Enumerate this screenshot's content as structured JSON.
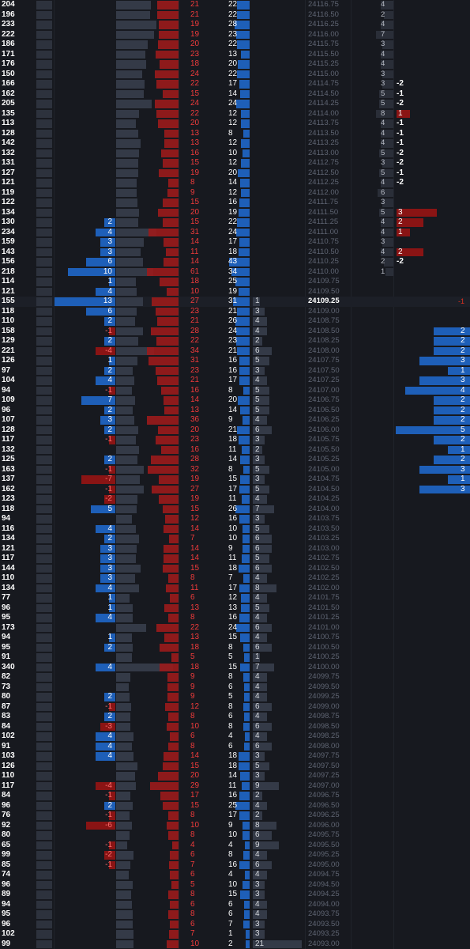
{
  "colors": {
    "background": "#17191f",
    "buy_bar": "#1e5fb8",
    "sell_bar": "#8a1414",
    "neutral_bar": "#343a47",
    "ask_text": "#ef3b3b",
    "price_text": "#5f6573",
    "current_price_text": "#ffffff"
  },
  "current_price": "24109.25",
  "current_marker": "-1",
  "rows": [
    {
      "v": "204",
      "d": null,
      "s": null,
      "r": "21",
      "b": "22",
      "t": null,
      "p": "24116.75",
      "f": "4",
      "n": null,
      "e": null
    },
    {
      "v": "196",
      "d": null,
      "s": null,
      "r": "21",
      "b": "22",
      "t": null,
      "p": "24116.50",
      "f": "2",
      "n": null,
      "e": null
    },
    {
      "v": "233",
      "d": null,
      "s": null,
      "r": "19",
      "b": "28",
      "t": null,
      "p": "24116.25",
      "f": "4",
      "n": null,
      "e": null
    },
    {
      "v": "222",
      "d": null,
      "s": null,
      "r": "19",
      "b": "23",
      "t": null,
      "p": "24116.00",
      "f": "7",
      "n": null,
      "e": null
    },
    {
      "v": "186",
      "d": null,
      "s": null,
      "r": "20",
      "b": "22",
      "t": null,
      "p": "24115.75",
      "f": "3",
      "n": null,
      "e": null
    },
    {
      "v": "171",
      "d": null,
      "s": null,
      "r": "23",
      "b": "13",
      "t": null,
      "p": "24115.50",
      "f": "4",
      "n": null,
      "e": null
    },
    {
      "v": "176",
      "d": null,
      "s": null,
      "r": "18",
      "b": "20",
      "t": null,
      "p": "24115.25",
      "f": "4",
      "n": null,
      "e": null
    },
    {
      "v": "150",
      "d": null,
      "s": null,
      "r": "24",
      "b": "22",
      "t": null,
      "p": "24115.00",
      "f": "3",
      "n": null,
      "e": null
    },
    {
      "v": "166",
      "d": null,
      "s": null,
      "r": "22",
      "b": "17",
      "t": null,
      "p": "24114.75",
      "f": "3",
      "n": "-2",
      "e": null
    },
    {
      "v": "162",
      "d": null,
      "s": null,
      "r": "15",
      "b": "14",
      "t": null,
      "p": "24114.50",
      "f": "5",
      "n": "-1",
      "e": null
    },
    {
      "v": "205",
      "d": null,
      "s": null,
      "r": "24",
      "b": "24",
      "t": null,
      "p": "24114.25",
      "f": "5",
      "n": "-2",
      "e": null
    },
    {
      "v": "135",
      "d": null,
      "s": null,
      "r": "22",
      "b": "12",
      "t": null,
      "p": "24114.00",
      "f": "8",
      "n": "1",
      "e": null
    },
    {
      "v": "113",
      "d": null,
      "s": null,
      "r": "20",
      "b": "12",
      "t": null,
      "p": "24113.75",
      "f": "4",
      "n": "-1",
      "e": null
    },
    {
      "v": "128",
      "d": null,
      "s": null,
      "r": "13",
      "b": "8",
      "t": null,
      "p": "24113.50",
      "f": "4",
      "n": "-1",
      "e": null
    },
    {
      "v": "142",
      "d": null,
      "s": null,
      "r": "13",
      "b": "12",
      "t": null,
      "p": "24113.25",
      "f": "4",
      "n": "-1",
      "e": null
    },
    {
      "v": "132",
      "d": null,
      "s": null,
      "r": "16",
      "b": "10",
      "t": null,
      "p": "24113.00",
      "f": "5",
      "n": "-2",
      "e": null
    },
    {
      "v": "131",
      "d": null,
      "s": null,
      "r": "15",
      "b": "12",
      "t": null,
      "p": "24112.75",
      "f": "3",
      "n": "-2",
      "e": null
    },
    {
      "v": "127",
      "d": null,
      "s": null,
      "r": "19",
      "b": "20",
      "t": null,
      "p": "24112.50",
      "f": "5",
      "n": "-1",
      "e": null
    },
    {
      "v": "121",
      "d": null,
      "s": null,
      "r": "8",
      "b": "14",
      "t": null,
      "p": "24112.25",
      "f": "4",
      "n": "-2",
      "e": null
    },
    {
      "v": "119",
      "d": null,
      "s": null,
      "r": "9",
      "b": "12",
      "t": null,
      "p": "24112.00",
      "f": "6",
      "n": null,
      "e": null
    },
    {
      "v": "122",
      "d": null,
      "s": null,
      "r": "15",
      "b": "16",
      "t": null,
      "p": "24111.75",
      "f": "3",
      "n": null,
      "e": null
    },
    {
      "v": "134",
      "d": null,
      "s": null,
      "r": "20",
      "b": "19",
      "t": null,
      "p": "24111.50",
      "f": "5",
      "n": "3",
      "e": null
    },
    {
      "v": "130",
      "d": "2",
      "s": null,
      "r": "15",
      "b": "22",
      "t": null,
      "p": "24111.25",
      "f": "4",
      "n": "2",
      "e": null
    },
    {
      "v": "234",
      "d": "4",
      "s": null,
      "r": "31",
      "b": "24",
      "t": null,
      "p": "24111.00",
      "f": "4",
      "n": "1",
      "e": null
    },
    {
      "v": "159",
      "d": "3",
      "s": null,
      "r": "14",
      "b": "17",
      "t": null,
      "p": "24110.75",
      "f": "3",
      "n": null,
      "e": null
    },
    {
      "v": "143",
      "d": "3",
      "s": null,
      "r": "11",
      "b": "18",
      "t": null,
      "p": "24110.50",
      "f": "4",
      "n": "2",
      "e": null
    },
    {
      "v": "156",
      "d": "6",
      "s": null,
      "r": "14",
      "b": "43",
      "t": null,
      "p": "24110.25",
      "f": "2",
      "n": "-2",
      "e": null
    },
    {
      "v": "218",
      "d": "10",
      "s": null,
      "r": "61",
      "b": "34",
      "t": null,
      "p": "24110.00",
      "f": "1",
      "n": null,
      "e": null
    },
    {
      "v": "114",
      "d": "1",
      "s": null,
      "r": "18",
      "b": "25",
      "t": null,
      "p": "24109.75",
      "f": null,
      "n": null,
      "e": null
    },
    {
      "v": "121",
      "d": "4",
      "s": null,
      "r": "10",
      "b": "19",
      "t": null,
      "p": "24109.50",
      "f": null,
      "n": null,
      "e": null
    },
    {
      "v": "155",
      "d": "13",
      "s": null,
      "r": "27",
      "b": "31",
      "t": "1",
      "p": "24109.25",
      "f": null,
      "n": null,
      "e": null
    },
    {
      "v": "118",
      "d": "6",
      "s": null,
      "r": "23",
      "b": "21",
      "t": "3",
      "p": "24109.00",
      "f": null,
      "n": null,
      "e": null
    },
    {
      "v": "110",
      "d": "2",
      "s": null,
      "r": "21",
      "b": "26",
      "t": "4",
      "p": "24108.75",
      "f": null,
      "n": null,
      "e": null
    },
    {
      "v": "158",
      "d": "-1",
      "s": null,
      "r": "28",
      "b": "24",
      "t": "4",
      "p": "24108.50",
      "f": null,
      "n": null,
      "e": "2"
    },
    {
      "v": "129",
      "d": "2",
      "s": null,
      "r": "22",
      "b": "23",
      "t": "2",
      "p": "24108.25",
      "f": null,
      "n": null,
      "e": "2"
    },
    {
      "v": "221",
      "d": "-4",
      "s": null,
      "r": "34",
      "b": "21",
      "t": "6",
      "p": "24108.00",
      "f": null,
      "n": null,
      "e": "2"
    },
    {
      "v": "126",
      "d": "1",
      "s": null,
      "r": "31",
      "b": "16",
      "t": "5",
      "p": "24107.75",
      "f": null,
      "n": null,
      "e": "3"
    },
    {
      "v": "97",
      "d": "2",
      "s": null,
      "r": "23",
      "b": "16",
      "t": "3",
      "p": "24107.50",
      "f": null,
      "n": null,
      "e": "1"
    },
    {
      "v": "104",
      "d": "4",
      "s": null,
      "r": "21",
      "b": "17",
      "t": "4",
      "p": "24107.25",
      "f": null,
      "n": null,
      "e": "3"
    },
    {
      "v": "94",
      "d": "-1",
      "s": null,
      "r": "16",
      "b": "8",
      "t": "5",
      "p": "24107.00",
      "f": null,
      "n": null,
      "e": "4"
    },
    {
      "v": "109",
      "d": "7",
      "s": null,
      "r": "14",
      "b": "20",
      "t": "5",
      "p": "24106.75",
      "f": null,
      "n": null,
      "e": "2"
    },
    {
      "v": "96",
      "d": "2",
      "s": null,
      "r": "13",
      "b": "14",
      "t": "5",
      "p": "24106.50",
      "f": null,
      "n": null,
      "e": "2"
    },
    {
      "v": "107",
      "d": "3",
      "s": null,
      "r": "36",
      "b": "9",
      "t": "4",
      "p": "24106.25",
      "f": null,
      "n": null,
      "e": "2"
    },
    {
      "v": "128",
      "d": "2",
      "s": null,
      "r": "20",
      "b": "21",
      "t": "6",
      "p": "24106.00",
      "f": null,
      "n": null,
      "e": "5"
    },
    {
      "v": "117",
      "d": "-1",
      "s": null,
      "r": "23",
      "b": "18",
      "t": "3",
      "p": "24105.75",
      "f": null,
      "n": null,
      "e": "2"
    },
    {
      "v": "132",
      "d": null,
      "s": null,
      "r": "16",
      "b": "11",
      "t": "2",
      "p": "24105.50",
      "f": null,
      "n": null,
      "e": "1"
    },
    {
      "v": "125",
      "d": "2",
      "s": null,
      "r": "28",
      "b": "14",
      "t": "3",
      "p": "24105.25",
      "f": null,
      "n": null,
      "e": "2"
    },
    {
      "v": "163",
      "d": "-1",
      "s": null,
      "r": "32",
      "b": "8",
      "t": "5",
      "p": "24105.00",
      "f": null,
      "n": null,
      "e": "3"
    },
    {
      "v": "137",
      "d": "-7",
      "s": null,
      "r": "19",
      "b": "15",
      "t": "3",
      "p": "24104.75",
      "f": null,
      "n": null,
      "e": "1"
    },
    {
      "v": "162",
      "d": "-1",
      "s": null,
      "r": "27",
      "b": "17",
      "t": "5",
      "p": "24104.50",
      "f": null,
      "n": null,
      "e": "3"
    },
    {
      "v": "123",
      "d": "-2",
      "s": null,
      "r": "19",
      "b": "11",
      "t": "4",
      "p": "24104.25",
      "f": null,
      "n": null,
      "e": null
    },
    {
      "v": "118",
      "d": "5",
      "s": null,
      "r": "15",
      "b": "26",
      "t": "7",
      "p": "24104.00",
      "f": null,
      "n": null,
      "e": null
    },
    {
      "v": "94",
      "d": null,
      "s": null,
      "r": "12",
      "b": "16",
      "t": "3",
      "p": "24103.75",
      "f": null,
      "n": null,
      "e": null
    },
    {
      "v": "116",
      "d": "4",
      "s": null,
      "r": "14",
      "b": "10",
      "t": "5",
      "p": "24103.50",
      "f": null,
      "n": null,
      "e": null
    },
    {
      "v": "134",
      "d": "2",
      "s": null,
      "r": "7",
      "b": "10",
      "t": "6",
      "p": "24103.25",
      "f": null,
      "n": null,
      "e": null
    },
    {
      "v": "121",
      "d": "3",
      "s": null,
      "r": "14",
      "b": "9",
      "t": "6",
      "p": "24103.00",
      "f": null,
      "n": null,
      "e": null
    },
    {
      "v": "117",
      "d": "3",
      "s": null,
      "r": "14",
      "b": "11",
      "t": "5",
      "p": "24102.75",
      "f": null,
      "n": null,
      "e": null
    },
    {
      "v": "144",
      "d": "3",
      "s": null,
      "r": "15",
      "b": "18",
      "t": "6",
      "p": "24102.50",
      "f": null,
      "n": null,
      "e": null
    },
    {
      "v": "110",
      "d": "3",
      "s": null,
      "r": "8",
      "b": "7",
      "t": "4",
      "p": "24102.25",
      "f": null,
      "n": null,
      "e": null
    },
    {
      "v": "134",
      "d": "4",
      "s": null,
      "r": "11",
      "b": "17",
      "t": "8",
      "p": "24102.00",
      "f": null,
      "n": null,
      "e": null
    },
    {
      "v": "77",
      "d": "1",
      "s": null,
      "r": "6",
      "b": "12",
      "t": "4",
      "p": "24101.75",
      "f": null,
      "n": null,
      "e": null
    },
    {
      "v": "96",
      "d": "1",
      "s": null,
      "r": "13",
      "b": "13",
      "t": "5",
      "p": "24101.50",
      "f": null,
      "n": null,
      "e": null
    },
    {
      "v": "95",
      "d": "4",
      "s": null,
      "r": "8",
      "b": "16",
      "t": "4",
      "p": "24101.25",
      "f": null,
      "n": null,
      "e": null
    },
    {
      "v": "173",
      "d": null,
      "s": null,
      "r": "22",
      "b": "24",
      "t": "6",
      "p": "24101.00",
      "f": null,
      "n": null,
      "e": null
    },
    {
      "v": "94",
      "d": "1",
      "s": null,
      "r": "13",
      "b": "15",
      "t": "4",
      "p": "24100.75",
      "f": null,
      "n": null,
      "e": null
    },
    {
      "v": "95",
      "d": "2",
      "s": null,
      "r": "18",
      "b": "8",
      "t": "6",
      "p": "24100.50",
      "f": null,
      "n": null,
      "e": null
    },
    {
      "v": "91",
      "d": null,
      "s": null,
      "r": "5",
      "b": "5",
      "t": "1",
      "p": "24100.25",
      "f": null,
      "n": null,
      "e": null
    },
    {
      "v": "340",
      "d": "4",
      "s": null,
      "r": "18",
      "b": "15",
      "t": "7",
      "p": "24100.00",
      "f": null,
      "n": null,
      "e": null
    },
    {
      "v": "82",
      "d": null,
      "s": null,
      "r": "9",
      "b": "8",
      "t": "4",
      "p": "24099.75",
      "f": null,
      "n": null,
      "e": null
    },
    {
      "v": "73",
      "d": null,
      "s": null,
      "r": "9",
      "b": "6",
      "t": "4",
      "p": "24099.50",
      "f": null,
      "n": null,
      "e": null
    },
    {
      "v": "80",
      "d": "2",
      "s": null,
      "r": "9",
      "b": "5",
      "t": "4",
      "p": "24099.25",
      "f": null,
      "n": null,
      "e": null
    },
    {
      "v": "87",
      "d": "-1",
      "s": null,
      "r": "12",
      "b": "8",
      "t": "6",
      "p": "24099.00",
      "f": null,
      "n": null,
      "e": null
    },
    {
      "v": "83",
      "d": "2",
      "s": null,
      "r": "8",
      "b": "6",
      "t": "4",
      "p": "24098.75",
      "f": null,
      "n": null,
      "e": null
    },
    {
      "v": "84",
      "d": "-3",
      "s": null,
      "r": "10",
      "b": "8",
      "t": "6",
      "p": "24098.50",
      "f": null,
      "n": null,
      "e": null
    },
    {
      "v": "102",
      "d": "4",
      "s": null,
      "r": "6",
      "b": "4",
      "t": "4",
      "p": "24098.25",
      "f": null,
      "n": null,
      "e": null
    },
    {
      "v": "91",
      "d": "4",
      "s": null,
      "r": "8",
      "b": "6",
      "t": "6",
      "p": "24098.00",
      "f": null,
      "n": null,
      "e": null
    },
    {
      "v": "103",
      "d": "4",
      "s": null,
      "r": "14",
      "b": "18",
      "t": "3",
      "p": "24097.75",
      "f": null,
      "n": null,
      "e": null
    },
    {
      "v": "126",
      "d": null,
      "s": null,
      "r": "15",
      "b": "18",
      "t": "5",
      "p": "24097.50",
      "f": null,
      "n": null,
      "e": null
    },
    {
      "v": "110",
      "d": null,
      "s": null,
      "r": "20",
      "b": "14",
      "t": "3",
      "p": "24097.25",
      "f": null,
      "n": null,
      "e": null
    },
    {
      "v": "117",
      "d": "-4",
      "s": null,
      "r": "29",
      "b": "11",
      "t": "9",
      "p": "24097.00",
      "f": null,
      "n": null,
      "e": null
    },
    {
      "v": "84",
      "d": "-1",
      "s": null,
      "r": "17",
      "b": "16",
      "t": "2",
      "p": "24096.75",
      "f": null,
      "n": null,
      "e": null
    },
    {
      "v": "96",
      "d": "2",
      "s": null,
      "r": "15",
      "b": "25",
      "t": "4",
      "p": "24096.50",
      "f": null,
      "n": null,
      "e": null
    },
    {
      "v": "76",
      "d": "-1",
      "s": null,
      "r": "8",
      "b": "17",
      "t": "2",
      "p": "24096.25",
      "f": null,
      "n": null,
      "e": null
    },
    {
      "v": "92",
      "d": "-6",
      "s": null,
      "r": "10",
      "b": "9",
      "t": "8",
      "p": "24096.00",
      "f": null,
      "n": null,
      "e": null
    },
    {
      "v": "80",
      "d": null,
      "s": null,
      "r": "8",
      "b": "10",
      "t": "6",
      "p": "24095.75",
      "f": null,
      "n": null,
      "e": null
    },
    {
      "v": "65",
      "d": "-1",
      "s": null,
      "r": "4",
      "b": "4",
      "t": "9",
      "p": "24095.50",
      "f": null,
      "n": null,
      "e": null
    },
    {
      "v": "99",
      "d": "-2",
      "s": null,
      "r": "6",
      "b": "8",
      "t": "4",
      "p": "24095.25",
      "f": null,
      "n": null,
      "e": null
    },
    {
      "v": "85",
      "d": "-1",
      "s": null,
      "r": "7",
      "b": "16",
      "t": "6",
      "p": "24095.00",
      "f": null,
      "n": null,
      "e": null
    },
    {
      "v": "74",
      "d": null,
      "s": null,
      "r": "6",
      "b": "4",
      "t": "4",
      "p": "24094.75",
      "f": null,
      "n": null,
      "e": null
    },
    {
      "v": "96",
      "d": null,
      "s": null,
      "r": "5",
      "b": "10",
      "t": "3",
      "p": "24094.50",
      "f": null,
      "n": null,
      "e": null
    },
    {
      "v": "89",
      "d": null,
      "s": null,
      "r": "8",
      "b": "15",
      "t": "3",
      "p": "24094.25",
      "f": null,
      "n": null,
      "e": null
    },
    {
      "v": "94",
      "d": null,
      "s": null,
      "r": "6",
      "b": "6",
      "t": "4",
      "p": "24094.00",
      "f": null,
      "n": null,
      "e": null
    },
    {
      "v": "95",
      "d": null,
      "s": null,
      "r": "8",
      "b": "6",
      "t": "4",
      "p": "24093.75",
      "f": null,
      "n": null,
      "e": null
    },
    {
      "v": "96",
      "d": null,
      "s": null,
      "r": "6",
      "b": "7",
      "t": "3",
      "p": "24093.50",
      "f": null,
      "n": null,
      "e": null
    },
    {
      "v": "102",
      "d": null,
      "s": null,
      "r": "7",
      "b": "1",
      "t": "3",
      "p": "24093.25",
      "f": null,
      "n": null,
      "e": null
    },
    {
      "v": "99",
      "d": null,
      "s": null,
      "r": "10",
      "b": "2",
      "t": "21",
      "p": "24093.00",
      "f": null,
      "n": null,
      "e": null
    }
  ]
}
